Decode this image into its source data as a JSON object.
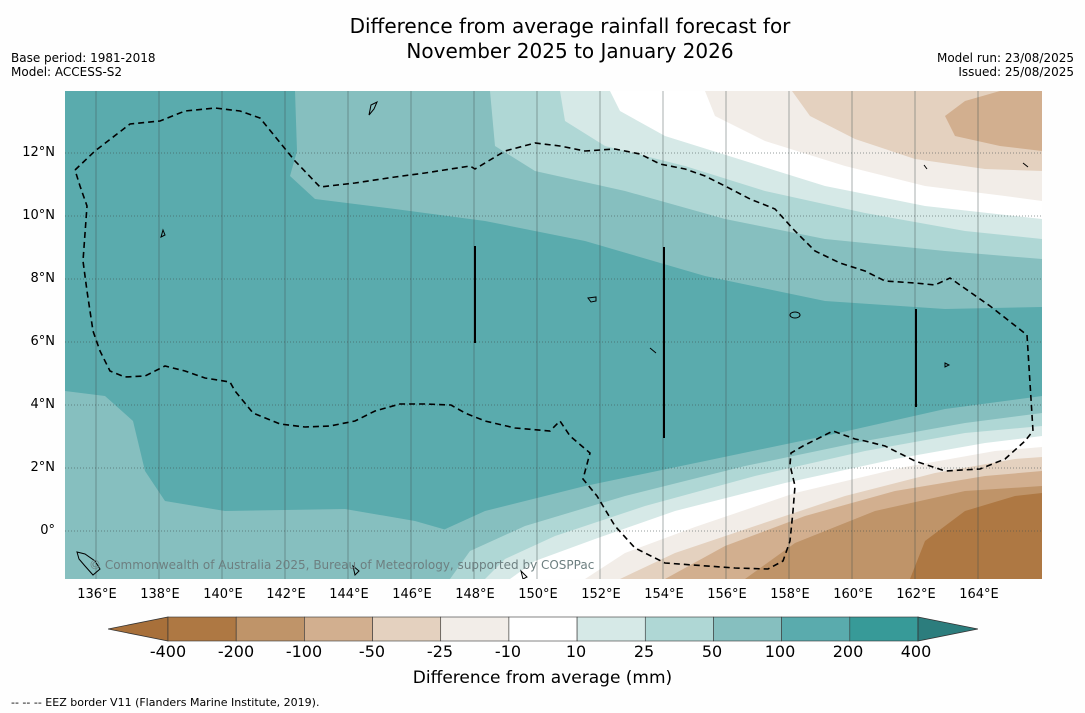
{
  "title_line1": "Difference from average rainfall forecast for",
  "title_line2": "November 2025 to January 2026",
  "meta": {
    "base_period": "Base period: 1981-2018",
    "model": "Model: ACCESS-S2",
    "model_run": "Model run: 23/08/2025",
    "issued": "Issued: 25/08/2025"
  },
  "lat_labels": [
    "12°N",
    "10°N",
    "8°N",
    "6°N",
    "4°N",
    "2°N",
    "0°"
  ],
  "lon_labels": [
    "136°E",
    "138°E",
    "140°E",
    "142°E",
    "144°E",
    "146°E",
    "148°E",
    "150°E",
    "152°E",
    "154°E",
    "156°E",
    "158°E",
    "160°E",
    "162°E",
    "164°E"
  ],
  "copyright": "© Commonwealth of Australia 2025, Bureau of Meteorology, supported by COSPPac",
  "colorbar": {
    "title": "Difference from average (mm)",
    "tick_labels": [
      "-400",
      "-200",
      "-100",
      "-50",
      "-25",
      "-10",
      "10",
      "25",
      "50",
      "100",
      "200",
      "400"
    ],
    "colors": [
      "#a8703a",
      "#ae7843",
      "#bf9469",
      "#d2af8f",
      "#e4d1bf",
      "#f2ede8",
      "#ffffff",
      "#d6e9e7",
      "#afd7d5",
      "#86bfbf",
      "#5aabad",
      "#379a98",
      "#2c7d7d"
    ]
  },
  "footnote": "--  --  -- EEZ border V11 (Flanders Marine Institute, 2019)."
}
